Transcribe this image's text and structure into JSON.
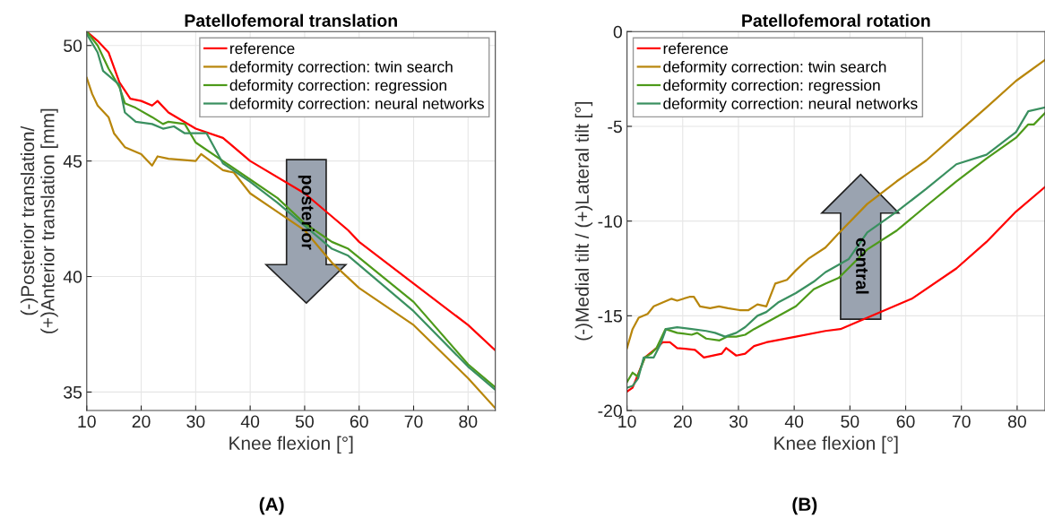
{
  "chart_data": [
    {
      "type": "line",
      "title": "Patellofemoral translation",
      "xlabel": "Knee flexion [°]",
      "ylabel": "(-)Posterior translation/\n(+)Anterior translation [mm]",
      "xlim": [
        10,
        85
      ],
      "xticks": [
        10,
        20,
        30,
        40,
        50,
        60,
        70,
        80
      ],
      "ylim": [
        34.2,
        50.6
      ],
      "yticks": [
        35,
        40,
        45,
        50
      ],
      "grid": true,
      "legend": "top right",
      "annotations": [
        "posterior",
        "(A)"
      ],
      "series": [
        {
          "name": "reference",
          "color": "#ff0000",
          "x": [
            10,
            12,
            14,
            16,
            18,
            20,
            22,
            23,
            25,
            30,
            35,
            40,
            50,
            55,
            58,
            60,
            70,
            80,
            85
          ],
          "values": [
            50.6,
            50.2,
            49.7,
            48.4,
            47.7,
            47.6,
            47.4,
            47.6,
            47.1,
            46.4,
            46.0,
            45.0,
            43.6,
            42.6,
            42.0,
            41.5,
            39.7,
            37.9,
            36.8
          ]
        },
        {
          "name": "deformity correction: twin search",
          "color": "#b8860b",
          "x": [
            10,
            11,
            12,
            14,
            15,
            17,
            20,
            22,
            23,
            25,
            30,
            31,
            35,
            37,
            40,
            45,
            50,
            55,
            60,
            70,
            80,
            85
          ],
          "values": [
            48.6,
            47.9,
            47.4,
            46.9,
            46.2,
            45.6,
            45.3,
            44.8,
            45.2,
            45.1,
            45.0,
            45.3,
            44.6,
            44.5,
            43.6,
            42.8,
            42.0,
            40.6,
            39.5,
            37.9,
            35.6,
            34.3
          ]
        },
        {
          "name": "deformity correction: regression",
          "color": "#4d9a1a",
          "x": [
            10,
            12,
            14,
            16,
            17,
            19,
            22,
            24,
            25,
            28,
            30,
            35,
            40,
            45,
            50,
            55,
            58,
            70,
            80,
            85
          ],
          "values": [
            50.6,
            50.0,
            49.0,
            48.2,
            47.5,
            47.3,
            46.9,
            46.6,
            46.7,
            46.6,
            45.8,
            45.0,
            44.2,
            43.4,
            42.3,
            41.5,
            41.2,
            38.9,
            36.2,
            35.2
          ]
        },
        {
          "name": "deformity correction: neural networks",
          "color": "#3a9060",
          "x": [
            10,
            12,
            13,
            16,
            17,
            19,
            22,
            24,
            26,
            28,
            32,
            35,
            40,
            45,
            50,
            55,
            58,
            70,
            80,
            82,
            85
          ],
          "values": [
            50.5,
            49.7,
            48.9,
            48.3,
            47.1,
            46.7,
            46.6,
            46.4,
            46.5,
            46.2,
            46.2,
            44.9,
            44.1,
            43.2,
            42.2,
            41.2,
            40.9,
            38.5,
            36.1,
            35.7,
            35.1
          ]
        }
      ]
    },
    {
      "type": "line",
      "title": "Patellofemoral rotation",
      "xlabel": "Knee flexion [°]",
      "ylabel": "(-)Medial tilt / (+)Lateral tilt [°]",
      "xlim": [
        10,
        85
      ],
      "xticks": [
        10,
        20,
        30,
        40,
        50,
        60,
        70,
        80
      ],
      "ylim": [
        -20,
        0
      ],
      "yticks": [
        -20,
        -15,
        -10,
        -5,
        0
      ],
      "grid": true,
      "legend": "top left",
      "annotations": [
        "central",
        "(B)"
      ],
      "series": [
        {
          "name": "reference",
          "color": "#ff0000",
          "x": [
            10,
            11,
            13.2,
            15.3,
            16.4,
            17.7,
            19,
            22.2,
            23.8,
            27,
            27.8,
            29.6,
            31.2,
            32.8,
            35,
            40.3,
            45.6,
            48.3,
            53.1,
            61.1,
            69.1,
            74.5,
            79.8,
            85
          ],
          "values": [
            -19.0,
            -18.8,
            -17.2,
            -16.7,
            -16.4,
            -16.4,
            -16.7,
            -16.8,
            -17.2,
            -17.0,
            -16.7,
            -17.1,
            -17.0,
            -16.6,
            -16.4,
            -16.1,
            -15.8,
            -15.7,
            -15.1,
            -14.1,
            -12.5,
            -11.1,
            -9.5,
            -8.2
          ]
        },
        {
          "name": "deformity correction: twin search",
          "color": "#b8860b",
          "x": [
            10,
            11,
            12.1,
            13.7,
            14.8,
            16.4,
            18,
            19,
            21.2,
            22,
            23.1,
            24.9,
            26.5,
            28.1,
            30.2,
            31.8,
            33.4,
            35,
            36.6,
            38.7,
            40.3,
            42.5,
            45.6,
            47.8,
            53.1,
            58.4,
            63.7,
            69.1,
            74.5,
            79.8,
            85
          ],
          "values": [
            -16.7,
            -15.7,
            -15.1,
            -14.9,
            -14.5,
            -14.3,
            -14.1,
            -14.2,
            -14.0,
            -14.0,
            -14.5,
            -14.6,
            -14.5,
            -14.6,
            -14.7,
            -14.7,
            -14.4,
            -14.5,
            -13.3,
            -13.1,
            -12.6,
            -12.0,
            -11.4,
            -10.7,
            -9.1,
            -7.9,
            -6.8,
            -5.4,
            -4.0,
            -2.6,
            -1.5
          ]
        },
        {
          "name": "deformity correction: regression",
          "color": "#4d9a1a",
          "x": [
            10,
            11,
            11.9,
            13.2,
            14.3,
            15.3,
            16.9,
            19,
            21.6,
            22.6,
            24.2,
            26.6,
            28,
            29.6,
            31.2,
            32.8,
            36,
            40.3,
            43.5,
            45.6,
            48,
            53.1,
            58.4,
            63.7,
            69.1,
            74.5,
            79.8,
            82,
            83,
            85
          ],
          "values": [
            -18.5,
            -18.0,
            -18.2,
            -17.2,
            -17.0,
            -16.7,
            -15.7,
            -15.9,
            -16.0,
            -15.9,
            -16.2,
            -16.3,
            -16.1,
            -16.1,
            -16.0,
            -15.7,
            -15.2,
            -14.5,
            -13.6,
            -13.3,
            -13.0,
            -11.5,
            -10.5,
            -9.2,
            -7.9,
            -6.7,
            -5.6,
            -4.9,
            -4.9,
            -4.3
          ]
        },
        {
          "name": "deformity correction: neural networks",
          "color": "#3a9060",
          "x": [
            10,
            11,
            12,
            13,
            14.8,
            16,
            17,
            19,
            21.6,
            24.2,
            25.8,
            27.6,
            29.6,
            31.2,
            33.4,
            35,
            37.1,
            40.3,
            43.5,
            45.6,
            49.8,
            53.1,
            58.4,
            63.7,
            69.1,
            74.5,
            79.8,
            82,
            85
          ],
          "values": [
            -18.8,
            -18.7,
            -18.3,
            -17.2,
            -17.2,
            -16.5,
            -15.7,
            -15.6,
            -15.7,
            -15.8,
            -15.9,
            -16.1,
            -15.9,
            -15.6,
            -15.0,
            -14.8,
            -14.3,
            -13.8,
            -13.2,
            -12.7,
            -12.0,
            -10.6,
            -9.5,
            -8.3,
            -7.0,
            -6.5,
            -5.3,
            -4.2,
            -4.0
          ]
        }
      ]
    }
  ]
}
